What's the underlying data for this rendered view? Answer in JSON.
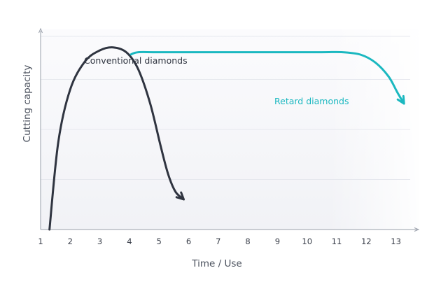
{
  "chart_data": {
    "type": "line",
    "title": "",
    "xlabel": "Time / Use",
    "ylabel": "Cutting capacity",
    "xlim": [
      1,
      13.6
    ],
    "ylim": [
      0,
      1
    ],
    "x_ticks": [
      1,
      2,
      3,
      4,
      5,
      6,
      7,
      8,
      9,
      10,
      11,
      12,
      13
    ],
    "grid": "horizontal",
    "series": [
      {
        "name": "Conventional diamonds",
        "color": "#2f3440",
        "points": [
          [
            1.3,
            0.0
          ],
          [
            1.6,
            0.44
          ],
          [
            2.0,
            0.7
          ],
          [
            2.5,
            0.84
          ],
          [
            3.0,
            0.895
          ],
          [
            3.45,
            0.91
          ],
          [
            3.9,
            0.885
          ],
          [
            4.3,
            0.8
          ],
          [
            4.7,
            0.63
          ],
          [
            5.05,
            0.42
          ],
          [
            5.3,
            0.28
          ],
          [
            5.55,
            0.19
          ],
          [
            5.8,
            0.155
          ]
        ]
      },
      {
        "name": "Retard diamonds",
        "color": "#1bb8c0",
        "points": [
          [
            4.05,
            0.875
          ],
          [
            4.3,
            0.886
          ],
          [
            5.0,
            0.886
          ],
          [
            7.0,
            0.886
          ],
          [
            9.0,
            0.886
          ],
          [
            10.5,
            0.886
          ],
          [
            11.2,
            0.886
          ],
          [
            11.8,
            0.874
          ],
          [
            12.3,
            0.835
          ],
          [
            12.75,
            0.765
          ],
          [
            13.05,
            0.685
          ],
          [
            13.25,
            0.635
          ]
        ]
      }
    ]
  }
}
